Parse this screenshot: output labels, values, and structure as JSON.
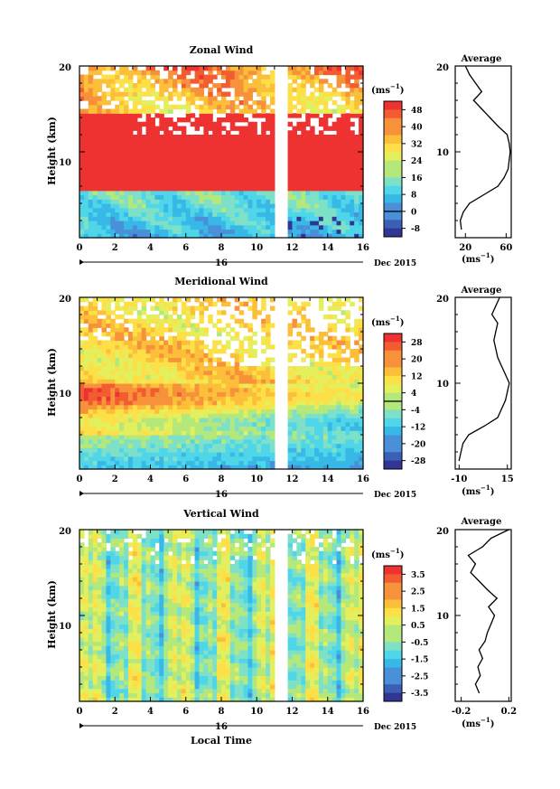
{
  "chart_data": [
    {
      "type": "heatmap",
      "title": "Zonal Wind",
      "ylabel": "Height (km)",
      "xticks": [
        "0",
        "2",
        "4",
        "6",
        "8",
        "10",
        "12",
        "14",
        "16"
      ],
      "yticks": [
        "10",
        "20"
      ],
      "xlim": [
        0,
        16
      ],
      "ylim": [
        0,
        20
      ],
      "date_day": "16",
      "date_label": "Dec 2015",
      "unit": "(ms",
      "unit_sup": "−1",
      "unit_close": ")",
      "colorbar": {
        "ticks": [
          "48",
          "40",
          "32",
          "24",
          "16",
          "8",
          "0",
          "-8"
        ],
        "min": -12,
        "max": 52,
        "contour": 0
      },
      "gap": [
        11.0,
        11.7
      ],
      "profile": {
        "title": "Average",
        "xticks": [
          "20",
          "60"
        ],
        "xlim": [
          10,
          65
        ],
        "unit": "(ms",
        "unit_sup": "−1",
        "unit_close": ")",
        "z": [
          1,
          2,
          3,
          4,
          5,
          6,
          7,
          8,
          9,
          10,
          11,
          12,
          13,
          14,
          15,
          16,
          17,
          18,
          19,
          20
        ],
        "values": [
          16,
          15,
          18,
          24,
          38,
          52,
          58,
          62,
          63,
          64,
          63,
          61,
          52,
          44,
          36,
          28,
          36,
          30,
          24,
          20
        ]
      }
    },
    {
      "type": "heatmap",
      "title": "Meridional Wind",
      "ylabel": "Height (km)",
      "xticks": [
        "0",
        "2",
        "4",
        "6",
        "8",
        "10",
        "12",
        "14",
        "16"
      ],
      "yticks": [
        "10",
        "20"
      ],
      "xlim": [
        0,
        16
      ],
      "ylim": [
        0,
        20
      ],
      "date_day": "16",
      "date_label": "Dec 2015",
      "unit": "(ms",
      "unit_sup": "−1",
      "unit_close": ")",
      "colorbar": {
        "ticks": [
          "28",
          "20",
          "12",
          "4",
          "-4",
          "-12",
          "-20",
          "-28"
        ],
        "min": -32,
        "max": 32,
        "contour": 0
      },
      "gap": [
        11.0,
        11.7
      ],
      "profile": {
        "title": "Average",
        "xticks": [
          "-10",
          "15"
        ],
        "xlim": [
          -12,
          17
        ],
        "unit": "(ms",
        "unit_sup": "−1",
        "unit_close": ")",
        "z": [
          1,
          2,
          3,
          4,
          5,
          6,
          7,
          8,
          9,
          10,
          11,
          12,
          13,
          14,
          15,
          16,
          17,
          18,
          19,
          20
        ],
        "values": [
          -10,
          -9,
          -8,
          -5,
          3,
          10,
          12,
          14,
          15,
          16,
          14,
          12,
          10,
          9,
          8,
          9,
          10,
          7,
          9,
          11
        ]
      }
    },
    {
      "type": "heatmap",
      "title": "Vertical Wind",
      "ylabel": "Height (km)",
      "xlabel": "Local Time",
      "xticks": [
        "0",
        "2",
        "4",
        "6",
        "8",
        "10",
        "12",
        "14",
        "16"
      ],
      "yticks": [
        "10",
        "20"
      ],
      "xlim": [
        0,
        16
      ],
      "ylim": [
        0,
        20
      ],
      "date_day": "16",
      "date_label": "Dec 2015",
      "unit": "(ms",
      "unit_sup": "−1",
      "unit_close": ")",
      "colorbar": {
        "ticks": [
          "3.5",
          "2.5",
          "1.5",
          "0.5",
          "-0.5",
          "-1.5",
          "-2.5",
          "-3.5"
        ],
        "min": -4,
        "max": 4
      },
      "gap": [
        11.0,
        11.7
      ],
      "profile": {
        "title": "Average",
        "xticks": [
          "-0.2",
          "0.2"
        ],
        "xlim": [
          -0.25,
          0.22
        ],
        "unit": "(ms",
        "unit_sup": "−1",
        "unit_close": ")",
        "z": [
          1,
          2,
          3,
          4,
          5,
          6,
          7,
          8,
          9,
          10,
          11,
          12,
          13,
          14,
          15,
          16,
          17,
          18,
          19,
          20
        ],
        "values": [
          -0.05,
          -0.08,
          -0.04,
          -0.06,
          -0.02,
          -0.05,
          0.0,
          0.02,
          0.05,
          0.08,
          0.03,
          0.1,
          0.02,
          -0.05,
          -0.12,
          -0.08,
          -0.14,
          -0.02,
          0.05,
          0.2
        ]
      }
    }
  ]
}
